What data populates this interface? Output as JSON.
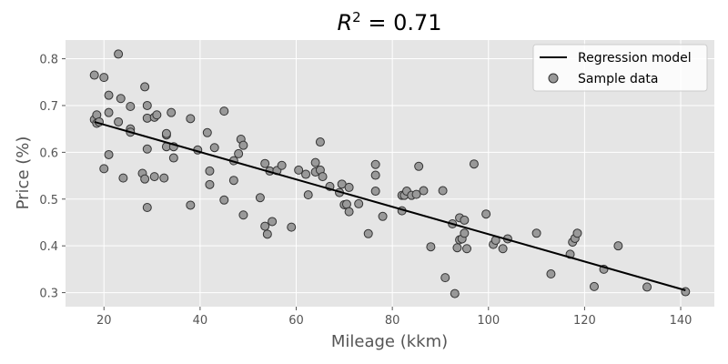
{
  "chart_data": {
    "type": "scatter",
    "title": "R² = 0.71",
    "xlabel": "Mileage (kkm)",
    "ylabel": "Price (%)",
    "xlim": [
      12,
      147
    ],
    "ylim": [
      0.27,
      0.84
    ],
    "xticks": [
      20,
      40,
      60,
      80,
      100,
      120,
      140
    ],
    "yticks": [
      0.3,
      0.4,
      0.5,
      0.6,
      0.7,
      0.8
    ],
    "xtick_labels": [
      "20",
      "40",
      "60",
      "80",
      "100",
      "120",
      "140"
    ],
    "ytick_labels": [
      "0.3",
      "0.4",
      "0.5",
      "0.6",
      "0.7",
      "0.8"
    ],
    "grid": true,
    "legend_position": "top-right",
    "colors": {
      "plot_background": "#e5e5e5",
      "grid": "#ffffff",
      "marker_fill": "#999999",
      "marker_edge": "#333333",
      "regression_line": "#000000"
    },
    "series": [
      {
        "name": "Regression model",
        "kind": "line",
        "x": [
          18,
          141
        ],
        "y": [
          0.665,
          0.305
        ]
      },
      {
        "name": "Sample data",
        "kind": "scatter",
        "x": [
          18,
          18,
          18.5,
          18.5,
          19,
          20,
          20,
          21,
          21,
          21,
          23,
          23,
          23.5,
          24,
          25.5,
          25.5,
          25.5,
          28,
          28.5,
          28.5,
          29,
          29,
          29,
          29,
          30.5,
          30.5,
          31,
          32.5,
          33,
          33,
          33,
          34,
          34.5,
          34.5,
          38,
          38,
          39.5,
          41.5,
          42,
          42,
          43,
          45,
          45,
          47,
          47,
          48,
          48.5,
          49,
          49,
          52.5,
          53.5,
          53.5,
          54,
          54.5,
          55,
          56,
          57,
          59,
          60.5,
          62,
          62.5,
          64,
          64,
          65,
          65,
          65.5,
          67,
          69,
          69.5,
          70,
          70.5,
          71,
          71,
          73,
          75,
          76.5,
          76.5,
          76.5,
          78,
          82,
          82,
          82.5,
          83,
          84,
          85,
          85.5,
          86.5,
          88,
          90.5,
          91,
          92.5,
          93,
          93.5,
          94,
          94,
          94.5,
          95,
          95,
          95.5,
          97,
          99.5,
          101,
          101.5,
          103,
          104,
          110,
          113,
          117,
          117.5,
          118,
          118.5,
          122,
          124,
          127,
          133,
          141
        ],
        "y": [
          0.765,
          0.67,
          0.68,
          0.662,
          0.665,
          0.76,
          0.565,
          0.722,
          0.685,
          0.595,
          0.81,
          0.665,
          0.715,
          0.545,
          0.698,
          0.65,
          0.643,
          0.555,
          0.74,
          0.543,
          0.673,
          0.7,
          0.607,
          0.482,
          0.675,
          0.548,
          0.68,
          0.545,
          0.637,
          0.64,
          0.612,
          0.685,
          0.612,
          0.588,
          0.672,
          0.487,
          0.605,
          0.642,
          0.531,
          0.56,
          0.61,
          0.688,
          0.498,
          0.54,
          0.582,
          0.597,
          0.628,
          0.615,
          0.466,
          0.503,
          0.576,
          0.442,
          0.425,
          0.56,
          0.452,
          0.561,
          0.572,
          0.44,
          0.562,
          0.553,
          0.509,
          0.578,
          0.558,
          0.622,
          0.562,
          0.548,
          0.527,
          0.514,
          0.532,
          0.488,
          0.489,
          0.525,
          0.473,
          0.49,
          0.426,
          0.574,
          0.551,
          0.517,
          0.463,
          0.508,
          0.475,
          0.508,
          0.517,
          0.508,
          0.51,
          0.57,
          0.518,
          0.398,
          0.518,
          0.332,
          0.447,
          0.298,
          0.396,
          0.46,
          0.413,
          0.415,
          0.427,
          0.455,
          0.394,
          0.575,
          0.468,
          0.403,
          0.412,
          0.394,
          0.415,
          0.427,
          0.34,
          0.382,
          0.408,
          0.416,
          0.427,
          0.313,
          0.35,
          0.4,
          0.312,
          0.302
        ]
      }
    ]
  }
}
